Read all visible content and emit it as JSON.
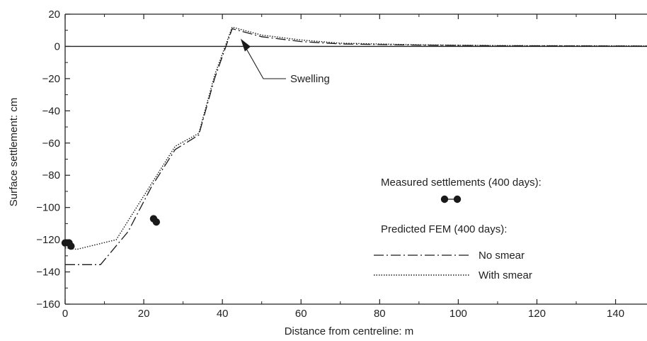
{
  "chart_data": {
    "type": "line",
    "title": "",
    "xlabel": "Distance from centreline: m",
    "ylabel": "Surface settlement: cm",
    "xlim": [
      0,
      148
    ],
    "ylim": [
      -160,
      20
    ],
    "x_ticks": [
      0,
      20,
      40,
      60,
      80,
      100,
      120,
      140
    ],
    "x_tick_labels": [
      "0",
      "20",
      "40",
      "60",
      "80",
      "100",
      "120",
      "140"
    ],
    "y_ticks": [
      20,
      0,
      -20,
      -40,
      -60,
      -80,
      -100,
      -120,
      -140,
      -160
    ],
    "y_tick_labels": [
      "20",
      "0",
      "−20",
      "−40",
      "−60",
      "−80",
      "−100",
      "−120",
      "−140",
      "−160"
    ],
    "grid": false,
    "zero_line": true,
    "series": [
      {
        "name": "No smear",
        "style": "dash-dot",
        "points": [
          [
            0,
            -135.5
          ],
          [
            9,
            -135.5
          ],
          [
            16,
            -115
          ],
          [
            22,
            -87
          ],
          [
            28,
            -64
          ],
          [
            34,
            -55
          ],
          [
            38,
            -20
          ],
          [
            42.5,
            11
          ],
          [
            50,
            6
          ],
          [
            60,
            3
          ],
          [
            70,
            1.5
          ],
          [
            90,
            0.8
          ],
          [
            110,
            0.4
          ],
          [
            148,
            0.2
          ]
        ]
      },
      {
        "name": "With smear",
        "style": "dotted",
        "points": [
          [
            0,
            -125
          ],
          [
            3,
            -126
          ],
          [
            13,
            -120
          ],
          [
            21,
            -89
          ],
          [
            28,
            -62
          ],
          [
            34,
            -54
          ],
          [
            38,
            -18
          ],
          [
            42.5,
            12
          ],
          [
            50,
            7
          ],
          [
            60,
            4
          ],
          [
            70,
            2
          ],
          [
            90,
            1
          ],
          [
            110,
            0.5
          ],
          [
            148,
            0.3
          ]
        ]
      },
      {
        "name": "Measured settlements (400 days)",
        "style": "markers",
        "points": [
          [
            0,
            -122
          ],
          [
            1,
            -122
          ],
          [
            1.5,
            -124
          ],
          [
            22.5,
            -107
          ],
          [
            23.2,
            -109
          ]
        ]
      }
    ],
    "legend": {
      "placement": "center-right",
      "measured_header": "Measured settlements (400 days):",
      "predicted_header": "Predicted FEM (400 days):",
      "no_smear_label": "No smear",
      "with_smear_label": "With smear"
    },
    "annotations": [
      {
        "text": "Swelling",
        "target": [
          45,
          3
        ]
      }
    ]
  }
}
